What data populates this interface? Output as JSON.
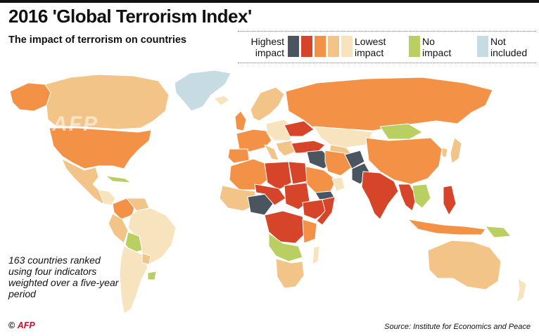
{
  "header": {
    "title": "2016 'Global Terrorism Index'",
    "subtitle": "The impact of terrorism on countries"
  },
  "legend": {
    "highest_line1": "Highest",
    "highest_line2": "impact",
    "lowest_line1": "Lowest",
    "lowest_line2": "impact",
    "none_line1": "No",
    "none_line2": "impact",
    "excluded_line1": "Not",
    "excluded_line2": "included",
    "scale_colors": [
      "#4a5560",
      "#d6452a",
      "#f39246",
      "#f3c487",
      "#f8e3bf"
    ],
    "no_impact_color": "#b9cf62",
    "not_included_color": "#c6dbe2"
  },
  "note": "163 countries ranked using four indicators weighted over a five-year period",
  "credit": {
    "copyright": "©",
    "logo": "AFP"
  },
  "watermark": "AFP",
  "source": "Source: Institute for Economics and Peace"
}
